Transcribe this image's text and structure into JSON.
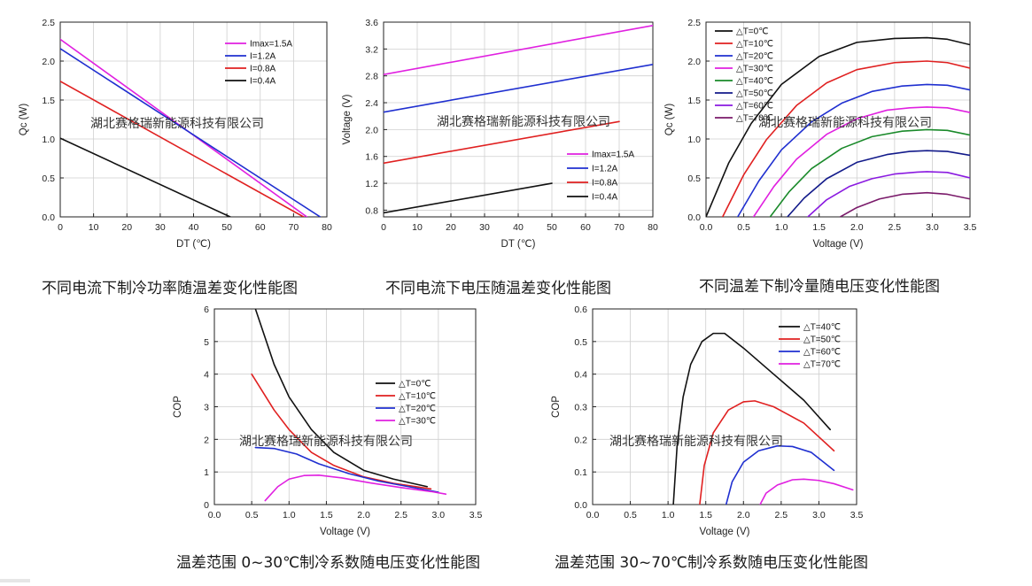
{
  "watermark": "湖北赛格瑞新能源科技有限公司",
  "colors": {
    "axis": "#222222",
    "grid": "#cfcfcf",
    "watermark": "#333333"
  },
  "chart_data": [
    {
      "id": "qc-vs-dt",
      "type": "line",
      "caption": "不同电流下制冷功率随温差变化性能图",
      "xlabel": "DT (℃)",
      "ylabel": "Qc (W)",
      "xlim": [
        0,
        80
      ],
      "ylim": [
        0,
        2.5
      ],
      "xticks": [
        0,
        10,
        20,
        30,
        40,
        50,
        60,
        70,
        80
      ],
      "yticks": [
        0.0,
        0.5,
        1.0,
        1.5,
        2.0,
        2.5
      ],
      "ytick_labels": [
        "0.0",
        "0.5",
        "1.0",
        "1.5",
        "2.0",
        "2.5"
      ],
      "legend_position": "top-right",
      "series": [
        {
          "name": "Imax=1.5A",
          "color": "#e020e0",
          "x": [
            0,
            74
          ],
          "y": [
            2.28,
            0.0
          ]
        },
        {
          "name": "I=1.2A",
          "color": "#1f2fd0",
          "x": [
            0,
            78
          ],
          "y": [
            2.16,
            0.0
          ]
        },
        {
          "name": "I=0.8A",
          "color": "#e02020",
          "x": [
            0,
            73
          ],
          "y": [
            1.74,
            0.0
          ]
        },
        {
          "name": "I=0.4A",
          "color": "#111111",
          "x": [
            0,
            51
          ],
          "y": [
            1.01,
            0.0
          ]
        }
      ]
    },
    {
      "id": "voltage-vs-dt",
      "type": "line",
      "caption": "不同电流下电压随温差变化性能图",
      "xlabel": "DT (℃)",
      "ylabel": "Voltage (V)",
      "xlim": [
        0,
        80
      ],
      "ylim": [
        0.7,
        3.6
      ],
      "xticks": [
        0,
        10,
        20,
        30,
        40,
        50,
        60,
        70,
        80
      ],
      "yticks": [
        0.8,
        1.2,
        1.6,
        2.0,
        2.4,
        2.8,
        3.2,
        3.6
      ],
      "ytick_labels": [
        "0.8",
        "1.2",
        "1.6",
        "2.0",
        "2.4",
        "2.8",
        "3.2",
        "3.6"
      ],
      "legend_position": "bottom-right",
      "series": [
        {
          "name": "Imax=1.5A",
          "color": "#e020e0",
          "x": [
            0,
            80
          ],
          "y": [
            2.82,
            3.55
          ]
        },
        {
          "name": "I=1.2A",
          "color": "#1f2fd0",
          "x": [
            0,
            80
          ],
          "y": [
            2.26,
            2.97
          ]
        },
        {
          "name": "I=0.8A",
          "color": "#e02020",
          "x": [
            0,
            70
          ],
          "y": [
            1.5,
            2.12
          ]
        },
        {
          "name": "I=0.4A",
          "color": "#111111",
          "x": [
            0,
            50
          ],
          "y": [
            0.76,
            1.2
          ]
        }
      ]
    },
    {
      "id": "qc-vs-voltage",
      "type": "line",
      "caption": "不同温差下制冷量随电压变化性能图",
      "xlabel": "Voltage (V)",
      "ylabel": "Qc (W)",
      "xlim": [
        0,
        3.5
      ],
      "ylim": [
        0,
        2.5
      ],
      "xticks": [
        0.0,
        0.5,
        1.0,
        1.5,
        2.0,
        2.5,
        3.0,
        3.5
      ],
      "xtick_labels": [
        "0.0",
        "0.5",
        "1.0",
        "1.5",
        "2.0",
        "2.5",
        "3.0",
        "3.5"
      ],
      "yticks": [
        0.0,
        0.5,
        1.0,
        1.5,
        2.0,
        2.5
      ],
      "ytick_labels": [
        "0.0",
        "0.5",
        "1.0",
        "1.5",
        "2.0",
        "2.5"
      ],
      "legend_position": "top-left",
      "series": [
        {
          "name": "△T=0℃",
          "color": "#111111",
          "x": [
            0.0,
            0.3,
            0.6,
            1.0,
            1.5,
            2.0,
            2.5,
            2.93,
            3.2,
            3.5
          ],
          "y": [
            0.0,
            0.69,
            1.2,
            1.7,
            2.06,
            2.24,
            2.29,
            2.3,
            2.28,
            2.21
          ]
        },
        {
          "name": "△T=10℃",
          "color": "#e02020",
          "x": [
            0.22,
            0.5,
            0.8,
            1.2,
            1.6,
            2.0,
            2.5,
            2.93,
            3.2,
            3.5
          ],
          "y": [
            0.0,
            0.54,
            0.99,
            1.43,
            1.72,
            1.89,
            1.98,
            2.0,
            1.98,
            1.91
          ]
        },
        {
          "name": "△T=20℃",
          "color": "#1f2fd0",
          "x": [
            0.42,
            0.7,
            1.0,
            1.4,
            1.8,
            2.2,
            2.6,
            2.93,
            3.2,
            3.5
          ],
          "y": [
            0.0,
            0.46,
            0.86,
            1.22,
            1.46,
            1.61,
            1.68,
            1.7,
            1.69,
            1.63
          ]
        },
        {
          "name": "△T=30℃",
          "color": "#e020e0",
          "x": [
            0.63,
            0.9,
            1.2,
            1.6,
            2.0,
            2.4,
            2.7,
            2.93,
            3.2,
            3.5
          ],
          "y": [
            0.0,
            0.39,
            0.74,
            1.06,
            1.26,
            1.37,
            1.4,
            1.41,
            1.4,
            1.34
          ]
        },
        {
          "name": "△T=40℃",
          "color": "#1a8a2a",
          "x": [
            0.85,
            1.1,
            1.4,
            1.8,
            2.2,
            2.6,
            2.93,
            3.2,
            3.5
          ],
          "y": [
            0.0,
            0.32,
            0.62,
            0.88,
            1.03,
            1.1,
            1.12,
            1.11,
            1.05
          ]
        },
        {
          "name": "△T=50℃",
          "color": "#121a8a",
          "x": [
            1.08,
            1.3,
            1.6,
            2.0,
            2.4,
            2.7,
            2.93,
            3.2,
            3.5
          ],
          "y": [
            0.0,
            0.24,
            0.49,
            0.7,
            0.8,
            0.84,
            0.85,
            0.84,
            0.79
          ]
        },
        {
          "name": "△T=60℃",
          "color": "#8a1ae0",
          "x": [
            1.35,
            1.6,
            1.9,
            2.2,
            2.5,
            2.8,
            2.93,
            3.2,
            3.5
          ],
          "y": [
            0.0,
            0.22,
            0.39,
            0.49,
            0.55,
            0.575,
            0.58,
            0.57,
            0.5
          ]
        },
        {
          "name": "△T=70℃",
          "color": "#7a1a6a",
          "x": [
            1.78,
            2.0,
            2.3,
            2.6,
            2.93,
            3.2,
            3.5
          ],
          "y": [
            0.0,
            0.12,
            0.23,
            0.29,
            0.31,
            0.29,
            0.23
          ]
        }
      ]
    },
    {
      "id": "cop-low-dt",
      "type": "line",
      "caption": "温差范围 0~30℃制冷系数随电压变化性能图",
      "xlabel": "Voltage (V)",
      "ylabel": "COP",
      "xlim": [
        0,
        3.5
      ],
      "ylim": [
        0,
        6
      ],
      "xticks": [
        0.0,
        0.5,
        1.0,
        1.5,
        2.0,
        2.5,
        3.0,
        3.5
      ],
      "xtick_labels": [
        "0.0",
        "0.5",
        "1.0",
        "1.5",
        "2.0",
        "2.5",
        "3.0",
        "3.5"
      ],
      "yticks": [
        0,
        1,
        2,
        3,
        4,
        5,
        6
      ],
      "ytick_labels": [
        "0",
        "1",
        "2",
        "3",
        "4",
        "5",
        "6"
      ],
      "legend_position": "middle-right",
      "series": [
        {
          "name": "△T=0℃",
          "color": "#111111",
          "x": [
            0.55,
            0.8,
            1.0,
            1.3,
            1.6,
            2.0,
            2.4,
            2.85
          ],
          "y": [
            6.0,
            4.3,
            3.3,
            2.3,
            1.6,
            1.05,
            0.78,
            0.55
          ]
        },
        {
          "name": "△T=10℃",
          "color": "#e02020",
          "x": [
            0.5,
            0.8,
            1.0,
            1.3,
            1.6,
            2.0,
            2.4,
            2.9
          ],
          "y": [
            4.0,
            2.9,
            2.3,
            1.6,
            1.2,
            0.85,
            0.65,
            0.48
          ]
        },
        {
          "name": "△T=20℃",
          "color": "#1f2fd0",
          "x": [
            0.55,
            0.8,
            1.1,
            1.4,
            1.8,
            2.2,
            2.6,
            3.0
          ],
          "y": [
            1.75,
            1.72,
            1.55,
            1.25,
            0.95,
            0.72,
            0.55,
            0.38
          ]
        },
        {
          "name": "△T=30℃",
          "color": "#e020e0",
          "x": [
            0.68,
            0.85,
            1.0,
            1.2,
            1.4,
            1.7,
            2.1,
            2.5,
            2.9,
            3.1
          ],
          "y": [
            0.12,
            0.55,
            0.78,
            0.89,
            0.9,
            0.82,
            0.66,
            0.52,
            0.4,
            0.32
          ]
        }
      ]
    },
    {
      "id": "cop-high-dt",
      "type": "line",
      "caption": "温差范围 30~70℃制冷系数随电压变化性能图",
      "xlabel": "Voltage (V)",
      "ylabel": "COP",
      "xlim": [
        0,
        3.5
      ],
      "ylim": [
        0,
        0.6
      ],
      "xticks": [
        0.0,
        0.5,
        1.0,
        1.5,
        2.0,
        2.5,
        3.0,
        3.5
      ],
      "xtick_labels": [
        "0.0",
        "0.5",
        "1.0",
        "1.5",
        "2.0",
        "2.5",
        "3.0",
        "3.5"
      ],
      "yticks": [
        0.0,
        0.1,
        0.2,
        0.3,
        0.4,
        0.5,
        0.6
      ],
      "ytick_labels": [
        "0.0",
        "0.1",
        "0.2",
        "0.3",
        "0.4",
        "0.5",
        "0.6"
      ],
      "legend_position": "top-right",
      "series": [
        {
          "name": "△T=40℃",
          "color": "#111111",
          "x": [
            1.07,
            1.12,
            1.2,
            1.3,
            1.45,
            1.6,
            1.75,
            2.0,
            2.4,
            2.8,
            3.15
          ],
          "y": [
            0.0,
            0.18,
            0.33,
            0.43,
            0.5,
            0.525,
            0.525,
            0.48,
            0.4,
            0.32,
            0.23
          ]
        },
        {
          "name": "△T=50℃",
          "color": "#e02020",
          "x": [
            1.42,
            1.48,
            1.6,
            1.8,
            2.0,
            2.15,
            2.4,
            2.8,
            3.2
          ],
          "y": [
            0.0,
            0.12,
            0.22,
            0.29,
            0.315,
            0.318,
            0.3,
            0.25,
            0.165
          ]
        },
        {
          "name": "△T=60℃",
          "color": "#1f2fd0",
          "x": [
            1.77,
            1.85,
            2.0,
            2.2,
            2.45,
            2.65,
            2.9,
            3.2
          ],
          "y": [
            0.0,
            0.07,
            0.13,
            0.165,
            0.18,
            0.178,
            0.16,
            0.105
          ]
        },
        {
          "name": "△T=70℃",
          "color": "#e020e0",
          "x": [
            2.22,
            2.3,
            2.45,
            2.65,
            2.8,
            3.0,
            3.2,
            3.45
          ],
          "y": [
            0.0,
            0.035,
            0.06,
            0.076,
            0.078,
            0.074,
            0.064,
            0.045
          ]
        }
      ]
    }
  ]
}
